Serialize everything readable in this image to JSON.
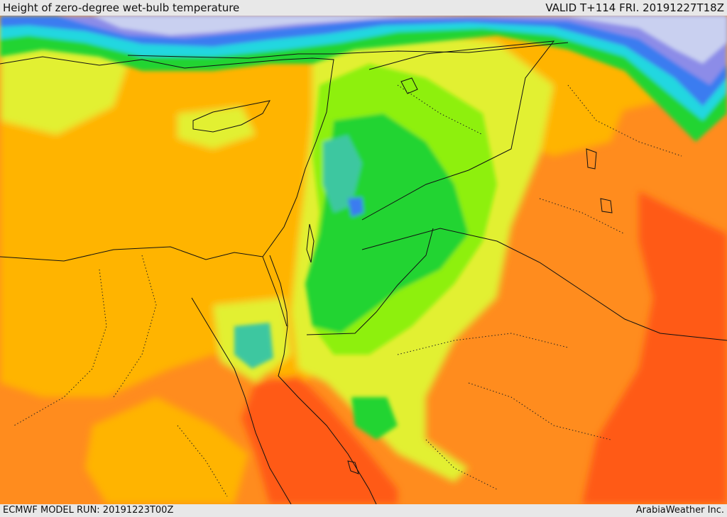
{
  "header": {
    "title": "Height of zero-degree wet-bulb temperature",
    "valid": "VALID T+114 FRI. 20191227T18Z"
  },
  "footer": {
    "model_run": "ECMWF MODEL RUN: 20191223T00Z",
    "credit": "ArabiaWeather Inc."
  },
  "palette": {
    "sea_deep": "#c9d0f0",
    "violet": "#8c8ce8",
    "blue": "#3a7cf0",
    "cyan": "#22d7e0",
    "teal": "#3cc7a0",
    "green": "#22d430",
    "light_green": "#8ef010",
    "yellow_green": "#e2f030",
    "orange_light": "#ffb400",
    "orange": "#ff8c1e",
    "orange_red": "#ff5a14"
  }
}
